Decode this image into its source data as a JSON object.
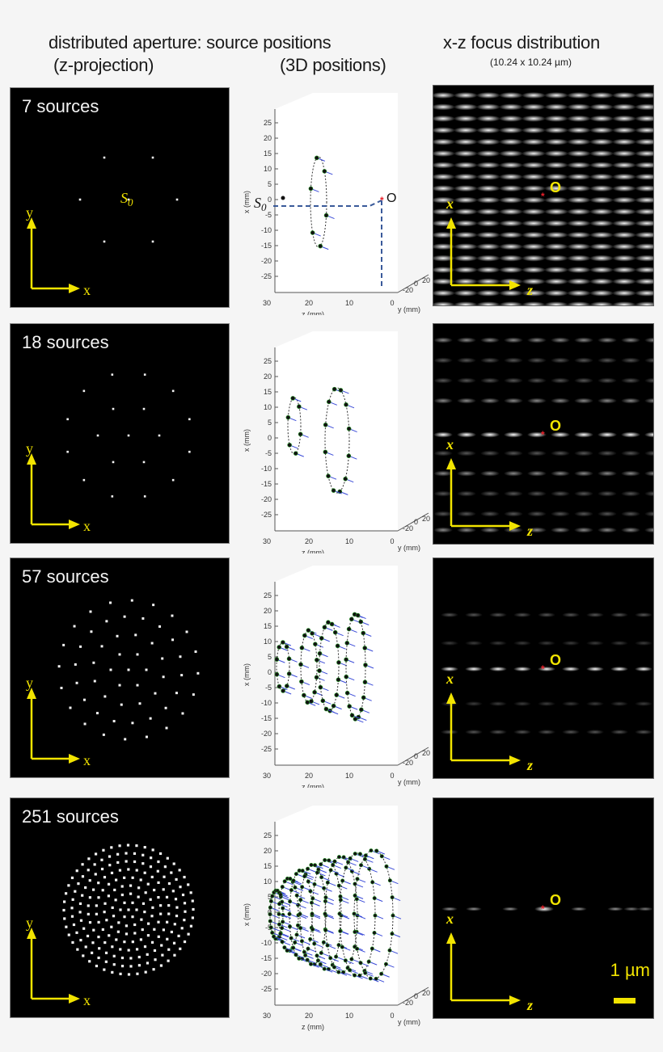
{
  "header": {
    "col1_line1": "distributed aperture: source positions",
    "col1_line2_left": "(z-projection)",
    "col1_line2_right": "(3D positions)",
    "col3_line1": "x-z focus distribution",
    "col3_line2": "(10.24 x 10.24 µm)"
  },
  "axes": {
    "projection_x": "x",
    "projection_y": "y",
    "focus_x": "x",
    "focus_z": "z",
    "origin_label": "O",
    "source_label": "S",
    "source_subscript": "0",
    "plot3d_xlabel": "x (mm)",
    "plot3d_zlabel": "z (mm)",
    "plot3d_ylabel": "y (mm)",
    "plot3d_xticks": [
      "25",
      "20",
      "15",
      "10",
      "5",
      "0",
      "-5",
      "-10",
      "-15",
      "-20",
      "-25"
    ],
    "plot3d_zticks": [
      "30",
      "20",
      "10",
      "0"
    ],
    "plot3d_yticks": [
      "20",
      "0",
      "-20"
    ]
  },
  "colors": {
    "annotation_yellow": "#f2e400",
    "focus_marker_red": "#e8202a",
    "path_blue": "#3a5a9a",
    "normal_blue": "#3b4bd8",
    "source_dot_green": "#2a9a2a"
  },
  "rows": [
    {
      "label": "7 sources",
      "n": 7
    },
    {
      "label": "18 sources",
      "n": 18
    },
    {
      "label": "57 sources",
      "n": 57
    },
    {
      "label": "251 sources",
      "n": 251
    }
  ],
  "scalebar": {
    "label": "1 µm"
  }
}
